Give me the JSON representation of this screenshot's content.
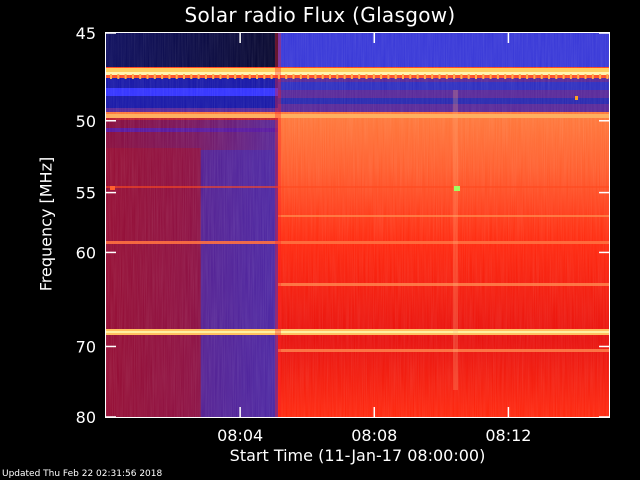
{
  "chart_data": {
    "type": "heatmap",
    "title": "Solar radio Flux (Glasgow)",
    "xlabel": "Start Time (11-Jan-17 08:00:00)",
    "ylabel": "Frequency [MHz]",
    "x_ticks": [
      "08:04",
      "08:08",
      "08:12"
    ],
    "x_tick_minutes": [
      4,
      8,
      12
    ],
    "xlim_minutes": [
      0,
      15
    ],
    "y_ticks": [
      45,
      50,
      55,
      60,
      70,
      80
    ],
    "ylim_mhz": [
      45,
      80
    ],
    "y_scale": "reciprocal",
    "colormap": [
      "#1a1aa0",
      "#3b3bff",
      "#a01030",
      "#e01010",
      "#ff4010",
      "#ff9050",
      "#ffe070"
    ],
    "events": [
      {
        "description_time_minutes": 5.3,
        "note": "broadband intensity step"
      }
    ],
    "bright_bands_mhz": [
      48.8,
      52.8,
      72.5
    ],
    "grid": false
  },
  "footer": "Updated Thu Feb 22 02:31:56 2018"
}
